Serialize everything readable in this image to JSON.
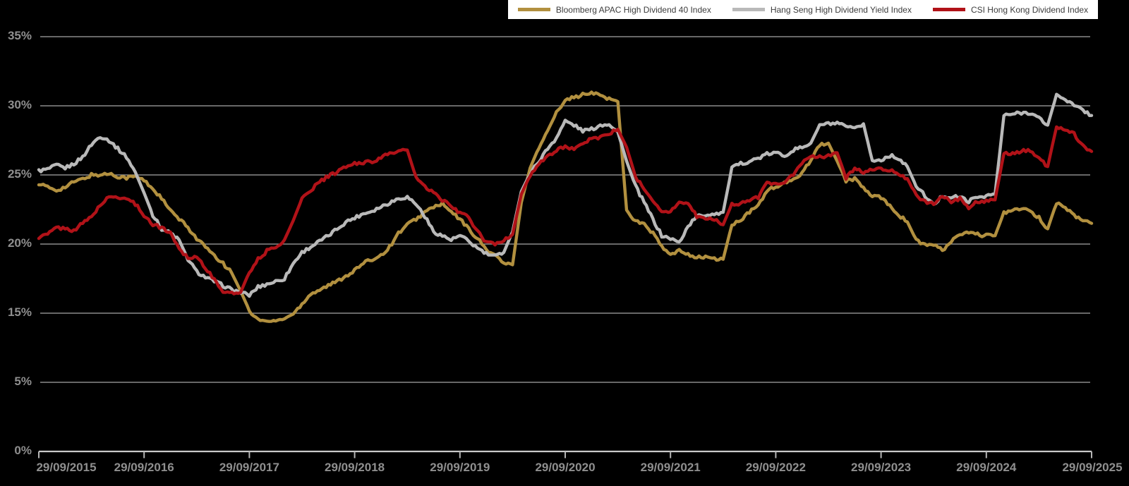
{
  "chart": {
    "background_color": "#000000",
    "title": "",
    "legend": {
      "position": "top-right",
      "items": [
        {
          "label": "Bloomberg APAC High Dividend 40 Index",
          "color": "#B2903F"
        },
        {
          "label": "Hang Seng High Dividend Yield Index",
          "color": "#B9B9B9"
        },
        {
          "label": "CSI Hong Kong Dividend Index",
          "color": "#B11218"
        }
      ]
    },
    "grid_color": "#A6A6A6",
    "axis_line_color": "#C9C9C9",
    "tick_color": "#B5B5B5",
    "axis_label_color": "#8F8F8F"
  },
  "chart_data": {
    "type": "line",
    "title": "",
    "xlabel": "",
    "ylabel": "",
    "x_unit": "months since 29/09/2015 (0 to 120, monthly samples)",
    "x_tick_labels": [
      "29/09/2015",
      "29/09/2016",
      "29/09/2017",
      "29/09/2018",
      "29/09/2019",
      "29/09/2020",
      "29/09/2021",
      "29/09/2022",
      "29/09/2023",
      "29/09/2024",
      "29/09/2025"
    ],
    "y_ticks": [
      {
        "label": "35%",
        "value": 35
      },
      {
        "label": "30%",
        "value": 30
      },
      {
        "label": "25%",
        "value": 25
      },
      {
        "label": "20%",
        "value": 20
      },
      {
        "label": "15%",
        "value": 15
      },
      {
        "label": "5%",
        "value": 5
      },
      {
        "label": "0%",
        "value": 0
      }
    ],
    "ylim": [
      0,
      35
    ],
    "grid": "horizontal",
    "legend_position": "top-right",
    "y_axis_note": "Broken axis: labeled gridlines 0,5,15,20,25,30,35 are equally spaced (10% row omitted)",
    "series": [
      {
        "name": "Bloomberg APAC High Dividend 40 Index",
        "color": "#B2903F",
        "values": [
          24.4,
          24.1,
          23.9,
          24.1,
          24.5,
          24.7,
          25.0,
          25.0,
          25.1,
          24.9,
          24.8,
          24.9,
          24.6,
          24.0,
          23.3,
          22.4,
          21.8,
          21.2,
          20.4,
          19.8,
          19.1,
          18.6,
          17.9,
          16.6,
          15.2,
          14.1,
          13.8,
          13.9,
          14.2,
          14.9,
          15.7,
          16.4,
          16.7,
          17.0,
          17.3,
          17.7,
          18.1,
          18.6,
          18.9,
          19.2,
          19.8,
          20.8,
          21.4,
          21.8,
          22.3,
          22.7,
          22.9,
          22.3,
          21.8,
          21.1,
          20.4,
          19.6,
          19.2,
          18.6,
          18.5,
          23.0,
          25.5,
          27.0,
          28.2,
          29.5,
          30.5,
          30.6,
          30.8,
          30.9,
          30.8,
          30.5,
          30.3,
          22.4,
          21.7,
          21.4,
          20.8,
          19.8,
          19.2,
          19.5,
          19.3,
          19.0,
          19.1,
          18.9,
          18.9,
          21.4,
          21.7,
          22.3,
          22.8,
          23.9,
          24.1,
          24.4,
          24.6,
          25.2,
          26.1,
          27.2,
          27.3,
          26.0,
          24.6,
          24.7,
          24.1,
          23.4,
          23.4,
          22.8,
          22.1,
          21.6,
          20.3,
          19.9,
          20.0,
          19.5,
          20.2,
          20.7,
          20.8,
          20.7,
          20.6,
          20.6,
          22.3,
          22.4,
          22.6,
          22.3,
          21.9,
          21.1,
          23.0,
          22.6,
          22.1,
          21.7,
          21.5
        ]
      },
      {
        "name": "Hang Seng High Dividend Yield Index",
        "color": "#B9B9B9",
        "values": [
          25.3,
          25.4,
          25.7,
          25.5,
          25.8,
          26.3,
          27.2,
          27.8,
          27.5,
          26.9,
          26.3,
          25.2,
          23.7,
          22.1,
          21.1,
          20.8,
          20.3,
          18.9,
          18.0,
          17.6,
          17.3,
          17.0,
          16.7,
          16.5,
          16.3,
          16.9,
          17.1,
          17.3,
          17.5,
          18.6,
          19.4,
          19.8,
          20.2,
          20.6,
          21.1,
          21.6,
          21.9,
          22.2,
          22.4,
          22.7,
          23.0,
          23.3,
          23.4,
          22.9,
          22.0,
          20.9,
          20.6,
          20.3,
          20.6,
          20.2,
          19.7,
          19.3,
          19.1,
          19.4,
          20.9,
          23.8,
          25.1,
          26.0,
          26.9,
          27.7,
          28.9,
          28.6,
          28.2,
          28.3,
          28.6,
          28.7,
          28.1,
          26.0,
          24.2,
          23.0,
          21.8,
          20.6,
          20.4,
          20.1,
          21.3,
          22.0,
          22.1,
          22.2,
          22.3,
          25.5,
          25.8,
          26.0,
          26.2,
          26.5,
          26.6,
          26.4,
          26.8,
          27.0,
          27.3,
          28.6,
          28.7,
          28.7,
          28.5,
          28.3,
          28.7,
          26.0,
          26.1,
          26.4,
          26.2,
          25.6,
          24.2,
          23.5,
          22.8,
          23.5,
          23.4,
          23.4,
          23.1,
          23.4,
          23.5,
          23.6,
          29.3,
          29.4,
          29.5,
          29.5,
          29.1,
          28.6,
          30.8,
          30.5,
          30.0,
          29.7,
          29.3
        ]
      },
      {
        "name": "CSI Hong Kong Dividend Index",
        "color": "#B11218",
        "values": [
          20.5,
          20.7,
          21.2,
          21.1,
          21.0,
          21.5,
          22.0,
          22.8,
          23.4,
          23.4,
          23.3,
          22.9,
          22.1,
          21.4,
          21.2,
          20.8,
          19.7,
          19.0,
          19.1,
          18.3,
          17.4,
          16.6,
          16.4,
          16.5,
          18.0,
          18.9,
          19.5,
          19.8,
          20.3,
          21.7,
          23.3,
          23.9,
          24.5,
          24.9,
          25.2,
          25.6,
          25.8,
          25.9,
          26.0,
          26.2,
          26.6,
          26.7,
          26.8,
          24.8,
          24.1,
          23.7,
          23.2,
          22.7,
          22.3,
          21.9,
          20.9,
          20.1,
          20.0,
          20.3,
          20.7,
          23.6,
          25.0,
          25.8,
          26.3,
          26.8,
          27.1,
          26.8,
          27.2,
          27.7,
          27.7,
          28.0,
          28.3,
          27.0,
          24.9,
          23.9,
          23.1,
          22.4,
          22.3,
          23.1,
          22.9,
          22.0,
          21.8,
          21.8,
          21.4,
          22.9,
          22.9,
          23.2,
          23.4,
          24.4,
          24.4,
          24.5,
          25.0,
          25.9,
          26.3,
          26.3,
          26.4,
          26.6,
          24.8,
          25.5,
          25.2,
          25.4,
          25.4,
          25.4,
          25.1,
          24.7,
          23.5,
          23.1,
          22.9,
          23.4,
          23.1,
          23.3,
          22.6,
          23.1,
          23.1,
          23.2,
          26.6,
          26.5,
          26.7,
          26.8,
          26.2,
          25.6,
          28.5,
          28.3,
          28.0,
          27.1,
          26.7
        ]
      }
    ]
  }
}
